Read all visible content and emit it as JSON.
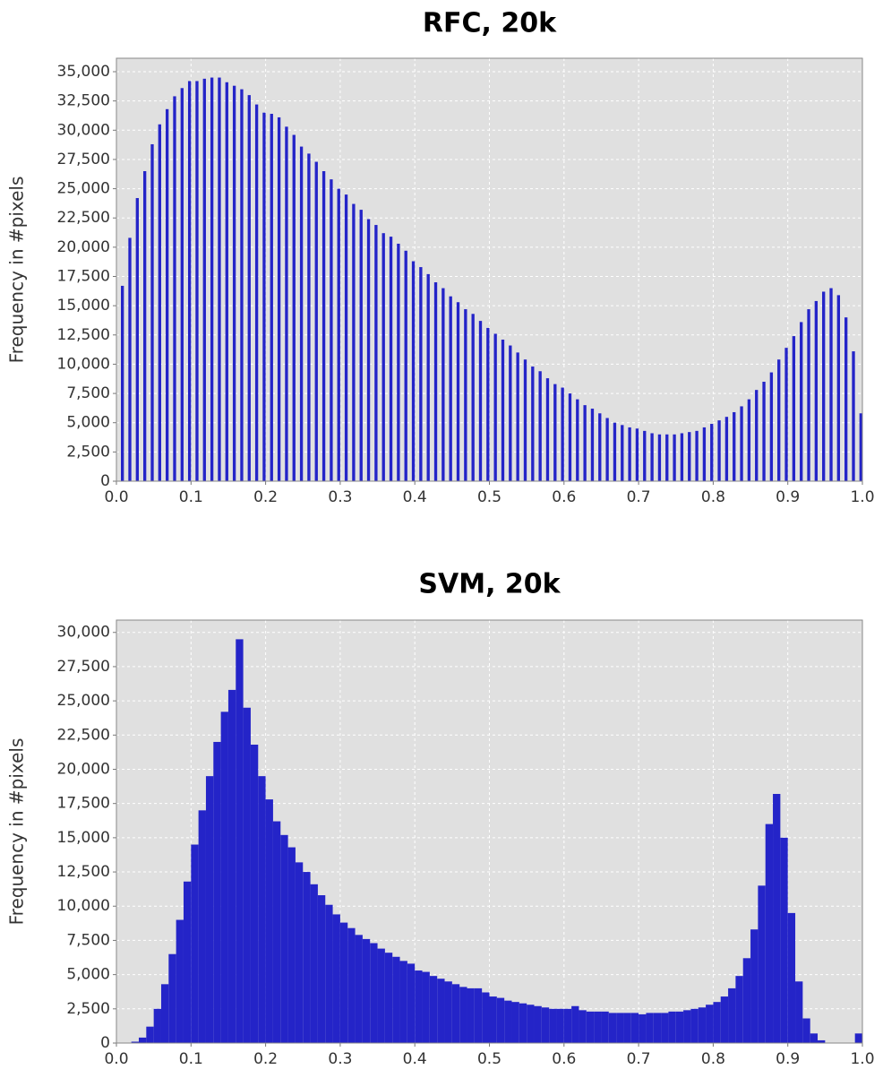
{
  "chart_data": [
    {
      "type": "histogram",
      "title": "RFC, 20k",
      "ylabel": "Frequency in #pixels",
      "color": "#2424c8",
      "grid": true,
      "bins": [
        0,
        0.01,
        0.02,
        0.03,
        0.04,
        0.05,
        0.06,
        0.07,
        0.08,
        0.09,
        0.1,
        0.11,
        0.12,
        0.13,
        0.14,
        0.15,
        0.16,
        0.17,
        0.18,
        0.19,
        0.2,
        0.21,
        0.22,
        0.23,
        0.24,
        0.25,
        0.26,
        0.27,
        0.28,
        0.29,
        0.3,
        0.31,
        0.32,
        0.33,
        0.34,
        0.35,
        0.36,
        0.37,
        0.38,
        0.39,
        0.4,
        0.41,
        0.42,
        0.43,
        0.44,
        0.45,
        0.46,
        0.47,
        0.48,
        0.49,
        0.5,
        0.51,
        0.52,
        0.53,
        0.54,
        0.55,
        0.56,
        0.57,
        0.58,
        0.59,
        0.6,
        0.61,
        0.62,
        0.63,
        0.64,
        0.65,
        0.66,
        0.67,
        0.68,
        0.69,
        0.7,
        0.71,
        0.72,
        0.73,
        0.74,
        0.75,
        0.76,
        0.77,
        0.78,
        0.79,
        0.8,
        0.81,
        0.82,
        0.83,
        0.84,
        0.85,
        0.86,
        0.87,
        0.88,
        0.89,
        0.9,
        0.91,
        0.92,
        0.93,
        0.94,
        0.95,
        0.96,
        0.97,
        0.98,
        0.99,
        1
      ],
      "values": [
        16700,
        20800,
        24200,
        26500,
        28800,
        30500,
        31800,
        32900,
        33600,
        34200,
        34200,
        34400,
        34500,
        34500,
        34100,
        33800,
        33500,
        33000,
        32200,
        31500,
        31400,
        31100,
        30300,
        29600,
        28600,
        28000,
        27300,
        26500,
        25800,
        25000,
        24500,
        23700,
        23200,
        22400,
        21900,
        21200,
        20900,
        20300,
        19700,
        18800,
        18300,
        17700,
        17000,
        16500,
        15800,
        15300,
        14700,
        14300,
        13700,
        13100,
        12600,
        12100,
        11600,
        11000,
        10400,
        9800,
        9400,
        8800,
        8300,
        8000,
        7500,
        7000,
        6500,
        6200,
        5800,
        5400,
        5000,
        4800,
        4600,
        4500,
        4300,
        4100,
        4000,
        4000,
        4000,
        4100,
        4200,
        4300,
        4600,
        4900,
        5200,
        5500,
        5900,
        6400,
        7000,
        7800,
        8500,
        9300,
        10400,
        11400,
        12400,
        13600,
        14700,
        15400,
        16200,
        16500,
        15900,
        14000,
        11100,
        5800
      ],
      "xlim": [
        0,
        1
      ],
      "xticks": [
        {
          "value": 0,
          "label": "0.0"
        },
        0.1,
        0.2,
        0.3,
        0.4,
        0.5,
        0.6,
        0.7,
        0.8,
        0.9,
        {
          "value": 1,
          "label": "1.0"
        }
      ],
      "ylim": [
        0,
        36150
      ],
      "yticks": [
        0,
        {
          "value": 2500,
          "label": "2,500"
        },
        {
          "value": 5000,
          "label": "5,000"
        },
        {
          "value": 7500,
          "label": "7,500"
        },
        {
          "value": 10000,
          "label": "10,000"
        },
        {
          "value": 12500,
          "label": "12,500"
        },
        {
          "value": 15000,
          "label": "15,000"
        },
        {
          "value": 17500,
          "label": "17,500"
        },
        {
          "value": 20000,
          "label": "20,000"
        },
        {
          "value": 22500,
          "label": "22,500"
        },
        {
          "value": 25000,
          "label": "25,000"
        },
        {
          "value": 27500,
          "label": "27,500"
        },
        {
          "value": 30000,
          "label": "30,000"
        },
        {
          "value": 32500,
          "label": "32,500"
        },
        {
          "value": 35000,
          "label": "35,000"
        }
      ]
    },
    {
      "type": "histogram",
      "title": "SVM, 20k",
      "ylabel": "Frequency in #pixels",
      "color": "#2424c8",
      "grid": true,
      "bins": [
        0,
        0.01,
        0.02,
        0.03,
        0.04,
        0.05,
        0.06,
        0.07,
        0.08,
        0.09,
        0.1,
        0.11,
        0.12,
        0.13,
        0.14,
        0.15,
        0.16,
        0.17,
        0.18,
        0.19,
        0.2,
        0.21,
        0.22,
        0.23,
        0.24,
        0.25,
        0.26,
        0.27,
        0.28,
        0.29,
        0.3,
        0.31,
        0.32,
        0.33,
        0.34,
        0.35,
        0.36,
        0.37,
        0.38,
        0.39,
        0.4,
        0.41,
        0.42,
        0.43,
        0.44,
        0.45,
        0.46,
        0.47,
        0.48,
        0.49,
        0.5,
        0.51,
        0.52,
        0.53,
        0.54,
        0.55,
        0.56,
        0.57,
        0.58,
        0.59,
        0.6,
        0.61,
        0.62,
        0.63,
        0.64,
        0.65,
        0.66,
        0.67,
        0.68,
        0.69,
        0.7,
        0.71,
        0.72,
        0.73,
        0.74,
        0.75,
        0.76,
        0.77,
        0.78,
        0.79,
        0.8,
        0.81,
        0.82,
        0.83,
        0.84,
        0.85,
        0.86,
        0.87,
        0.88,
        0.89,
        0.9,
        0.91,
        0.92,
        0.93,
        0.94,
        0.95,
        0.96,
        0.97,
        0.98,
        0.99,
        1
      ],
      "values": [
        0,
        0,
        100,
        400,
        1200,
        2500,
        4300,
        6500,
        9000,
        11800,
        14500,
        17000,
        19500,
        22000,
        24200,
        25800,
        29500,
        24500,
        21800,
        19500,
        17800,
        16200,
        15200,
        14300,
        13200,
        12500,
        11600,
        10800,
        10100,
        9400,
        8800,
        8400,
        7900,
        7600,
        7300,
        6900,
        6600,
        6300,
        6000,
        5800,
        5300,
        5200,
        4900,
        4700,
        4500,
        4300,
        4100,
        4000,
        4000,
        3700,
        3400,
        3300,
        3100,
        3000,
        2900,
        2800,
        2700,
        2600,
        2500,
        2500,
        2500,
        2700,
        2400,
        2300,
        2300,
        2300,
        2200,
        2200,
        2200,
        2200,
        2100,
        2200,
        2200,
        2200,
        2300,
        2300,
        2400,
        2500,
        2600,
        2800,
        3000,
        3400,
        4000,
        4900,
        6200,
        8300,
        11500,
        16000,
        18200,
        15000,
        9500,
        4500,
        1800,
        700,
        200,
        0,
        0,
        0,
        0,
        700
      ],
      "xlim": [
        0,
        1
      ],
      "xticks": [
        {
          "value": 0,
          "label": "0.0"
        },
        0.1,
        0.2,
        0.3,
        0.4,
        0.5,
        0.6,
        0.7,
        0.8,
        0.9,
        {
          "value": 1,
          "label": "1.0"
        }
      ],
      "ylim": [
        0,
        30900
      ],
      "yticks": [
        0,
        {
          "value": 2500,
          "label": "2,500"
        },
        {
          "value": 5000,
          "label": "5,000"
        },
        {
          "value": 7500,
          "label": "7,500"
        },
        {
          "value": 10000,
          "label": "10,000"
        },
        {
          "value": 12500,
          "label": "12,500"
        },
        {
          "value": 15000,
          "label": "15,000"
        },
        {
          "value": 17500,
          "label": "17,500"
        },
        {
          "value": 20000,
          "label": "20,000"
        },
        {
          "value": 22500,
          "label": "22,500"
        },
        {
          "value": 25000,
          "label": "25,000"
        },
        {
          "value": 27500,
          "label": "27,500"
        },
        {
          "value": 30000,
          "label": "30,000"
        }
      ]
    }
  ]
}
